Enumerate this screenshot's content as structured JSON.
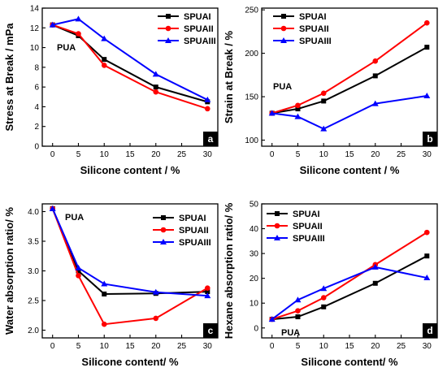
{
  "colors": {
    "SPUAI": "#000000",
    "SPUAII": "#ff0000",
    "SPUAIII": "#0000ff"
  },
  "chart_data": [
    {
      "type": "line",
      "panel_label": "a",
      "annotation": "PUA",
      "xlabel": "Silicone content / %",
      "ylabel": "Stress at Break / mPa",
      "x": [
        0,
        5,
        10,
        20,
        30
      ],
      "xticks": [
        0,
        5,
        10,
        15,
        20,
        25,
        30
      ],
      "xlim": [
        -2,
        32
      ],
      "ylim": [
        0,
        14
      ],
      "yticks": [
        0,
        2,
        4,
        6,
        8,
        10,
        12,
        14
      ],
      "legend_position": "top-right",
      "series": [
        {
          "name": "SPUAI",
          "values": [
            12.3,
            11.2,
            8.8,
            6.0,
            4.5
          ],
          "marker": "square"
        },
        {
          "name": "SPUAII",
          "values": [
            12.3,
            11.4,
            8.2,
            5.5,
            3.8
          ],
          "marker": "circle"
        },
        {
          "name": "SPUAIII",
          "values": [
            12.3,
            12.9,
            10.9,
            7.3,
            4.7
          ],
          "marker": "triangle"
        }
      ]
    },
    {
      "type": "line",
      "panel_label": "b",
      "annotation": "PUA",
      "xlabel": "Silicone content / %",
      "ylabel": "Strain at Break / %",
      "x": [
        0,
        5,
        10,
        20,
        30
      ],
      "xticks": [
        0,
        5,
        10,
        15,
        20,
        25,
        30
      ],
      "xlim": [
        -2,
        32
      ],
      "ylim": [
        93,
        252
      ],
      "yticks": [
        100,
        150,
        200,
        250
      ],
      "legend_position": "top-left",
      "series": [
        {
          "name": "SPUAI",
          "values": [
            131,
            136,
            145,
            174,
            207
          ],
          "marker": "square"
        },
        {
          "name": "SPUAII",
          "values": [
            131,
            140,
            154,
            191,
            235
          ],
          "marker": "circle"
        },
        {
          "name": "SPUAIII",
          "values": [
            131,
            127,
            113,
            142,
            151
          ],
          "marker": "triangle"
        }
      ]
    },
    {
      "type": "line",
      "panel_label": "c",
      "annotation": "PUA",
      "xlabel": "Silicone content/ %",
      "ylabel": "Water absorption ratio/ %",
      "x": [
        0,
        5,
        10,
        20,
        30
      ],
      "xticks": [
        0,
        5,
        10,
        15,
        20,
        25,
        30
      ],
      "xlim": [
        -2,
        32
      ],
      "ylim": [
        1.87,
        4.13
      ],
      "yticks": [
        2.0,
        2.5,
        3.0,
        3.5,
        4.0
      ],
      "ytick_decimals": 1,
      "legend_position": "top-right",
      "series": [
        {
          "name": "SPUAI",
          "values": [
            4.05,
            3.0,
            2.61,
            2.62,
            2.65
          ],
          "marker": "square"
        },
        {
          "name": "SPUAII",
          "values": [
            4.05,
            2.92,
            2.1,
            2.2,
            2.71
          ],
          "marker": "circle"
        },
        {
          "name": "SPUAIII",
          "values": [
            4.05,
            3.05,
            2.78,
            2.64,
            2.58
          ],
          "marker": "triangle"
        }
      ]
    },
    {
      "type": "line",
      "panel_label": "d",
      "annotation": "PUA",
      "xlabel": "Silicone content/ %",
      "ylabel": "Hexane absorption ratio/ %",
      "x": [
        0,
        5,
        10,
        20,
        30
      ],
      "xticks": [
        0,
        5,
        10,
        15,
        20,
        25,
        30
      ],
      "xlim": [
        -2,
        32
      ],
      "ylim": [
        -4,
        50
      ],
      "yticks": [
        0,
        10,
        20,
        30,
        40,
        50
      ],
      "legend_position": "top-left",
      "series": [
        {
          "name": "SPUAI",
          "values": [
            3.5,
            4.5,
            8.5,
            18.0,
            29.0
          ],
          "marker": "square"
        },
        {
          "name": "SPUAII",
          "values": [
            3.5,
            6.9,
            12.2,
            25.5,
            38.5
          ],
          "marker": "circle"
        },
        {
          "name": "SPUAIII",
          "values": [
            3.5,
            11.3,
            15.9,
            24.5,
            20.2
          ],
          "marker": "triangle"
        }
      ]
    }
  ]
}
